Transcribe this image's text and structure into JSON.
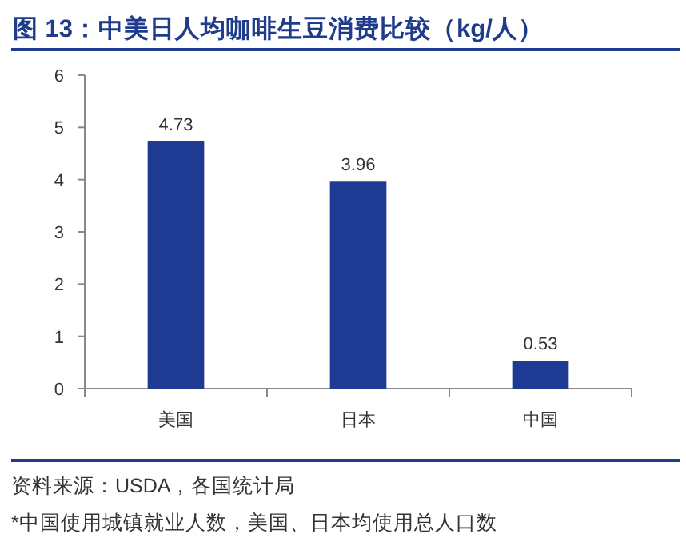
{
  "chart_data": {
    "type": "bar",
    "title": "图 13：中美日人均咖啡生豆消费比较（kg/人）",
    "categories": [
      "美国",
      "日本",
      "中国"
    ],
    "values": [
      4.73,
      3.96,
      0.53
    ],
    "color": "#1f3a93",
    "ylim": [
      0,
      6
    ],
    "yticks": [
      0,
      1,
      2,
      3,
      4,
      5,
      6
    ],
    "data_labels": true,
    "annotations": [
      "资料来源：USDA，各国统计局",
      "*中国使用城镇就业人数，美国、日本均使用总人口数"
    ]
  }
}
